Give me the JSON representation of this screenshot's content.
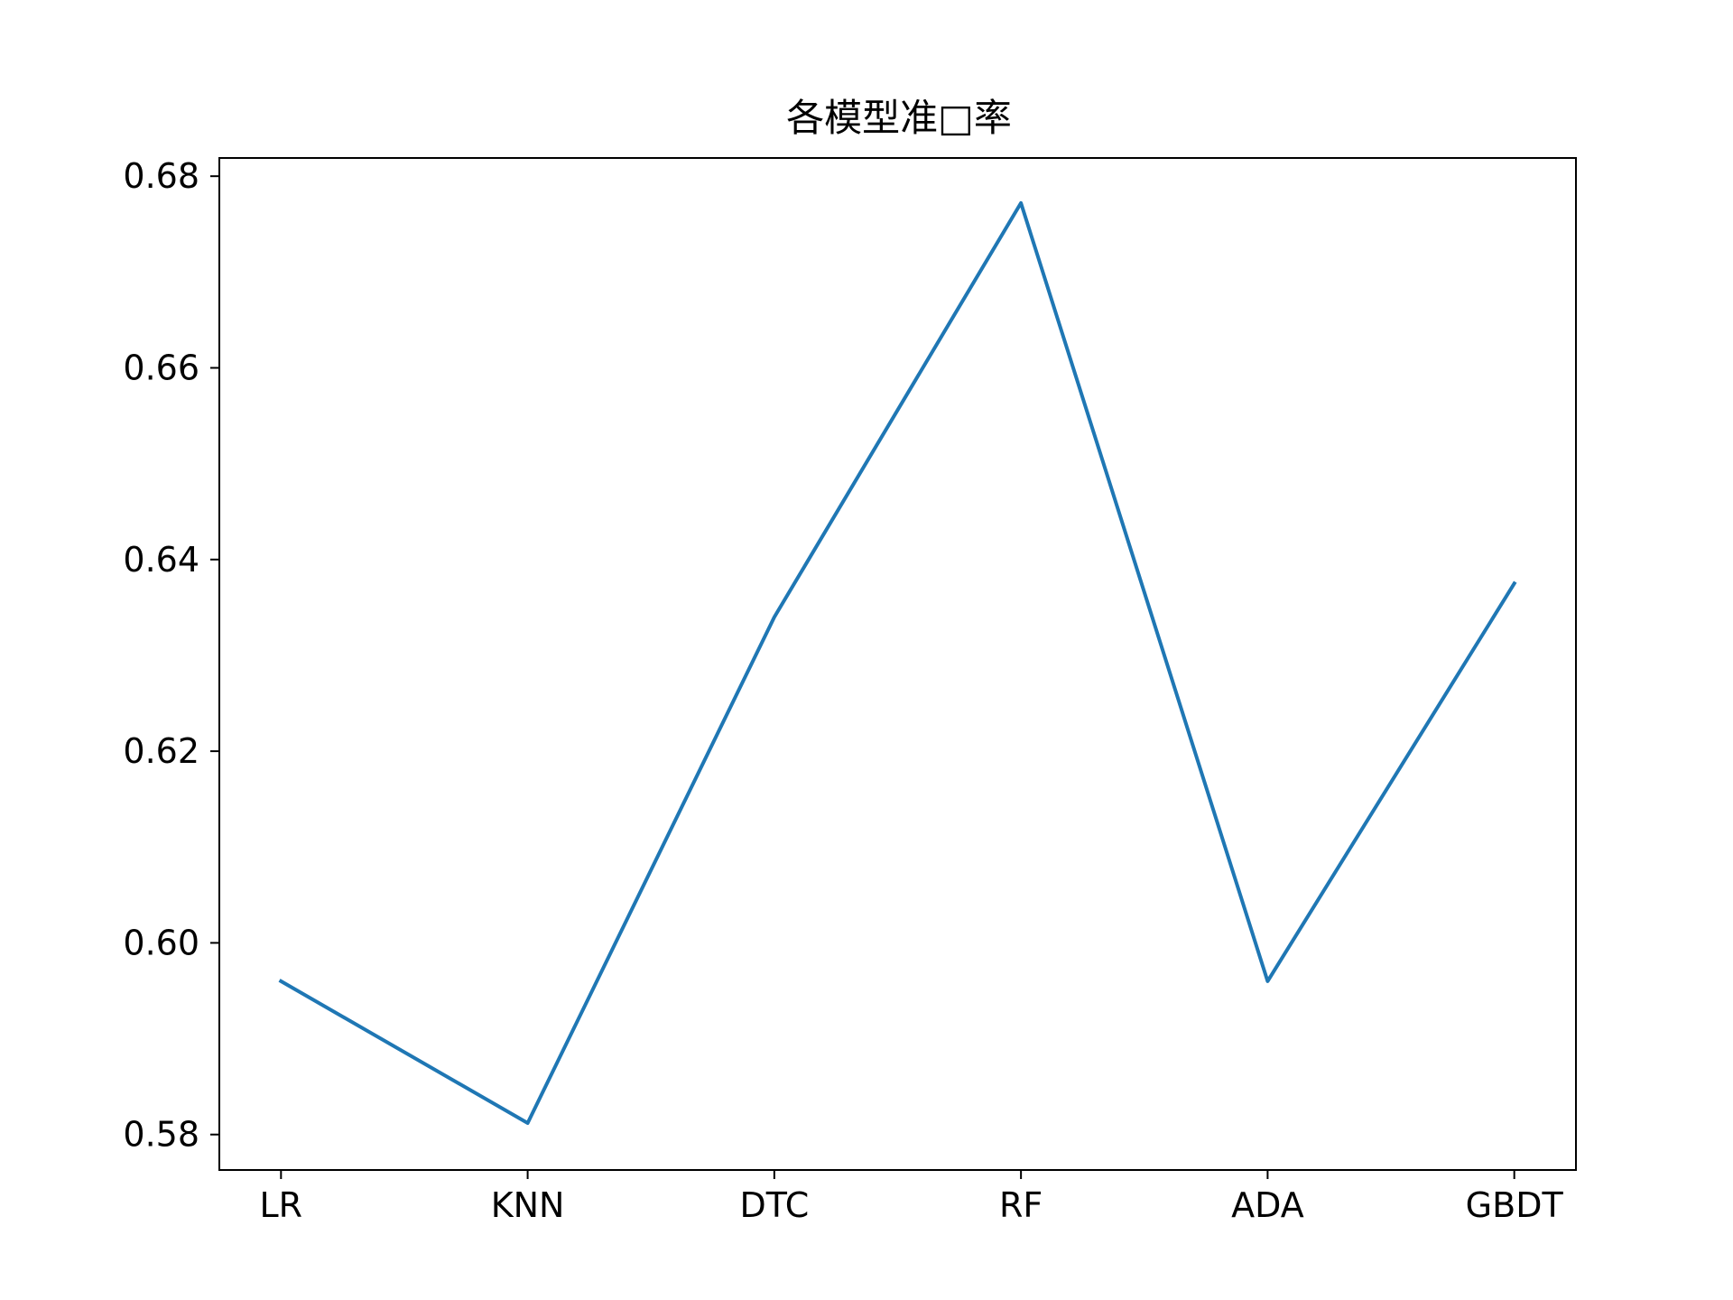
{
  "chart_data": {
    "type": "line",
    "title": "各模型准□率",
    "xlabel": "",
    "ylabel": "",
    "categories": [
      "LR",
      "KNN",
      "DTC",
      "RF",
      "ADA",
      "GBDT"
    ],
    "series": [
      {
        "values": [
          0.596,
          0.5812,
          0.634,
          0.6772,
          0.596,
          0.6375
        ]
      }
    ],
    "ylim": [
      0.5763,
      0.6819
    ],
    "yticks": [
      0.58,
      0.6,
      0.62,
      0.64,
      0.66,
      0.68
    ],
    "ytick_labels": [
      "0.58",
      "0.60",
      "0.62",
      "0.64",
      "0.66",
      "0.68"
    ],
    "grid": false,
    "colors": {
      "line": "#1f77b4",
      "axes": "#000000"
    }
  }
}
